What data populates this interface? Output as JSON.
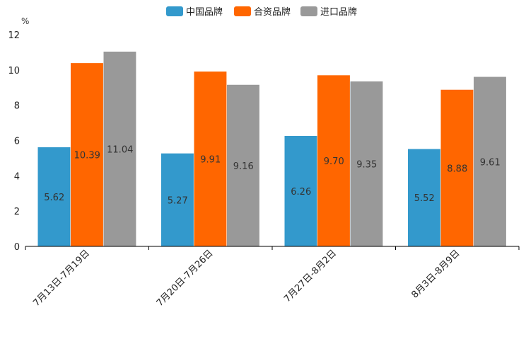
{
  "chart_data": {
    "type": "bar",
    "title": "",
    "xlabel": "",
    "ylabel": "%",
    "ylim": [
      0,
      12
    ],
    "yticks": [
      0,
      2,
      4,
      6,
      8,
      10,
      12
    ],
    "grid": false,
    "legend_position": "top-center",
    "categories": [
      "7月13日-7月19日",
      "7月20日-7月26日",
      "7月27日-8月2日",
      "8月3日-8月9日"
    ],
    "series": [
      {
        "name": "中国品牌",
        "color": "#3399cc",
        "values": [
          5.62,
          5.27,
          6.26,
          5.52
        ],
        "labels": [
          "5.62",
          "5.27",
          "6.26",
          "5.52"
        ]
      },
      {
        "name": "合资品牌",
        "color": "#ff6600",
        "values": [
          10.39,
          9.91,
          9.7,
          8.88
        ],
        "labels": [
          "10.39",
          "9.91",
          "9.70",
          "8.88"
        ]
      },
      {
        "name": "进口品牌",
        "color": "#999999",
        "values": [
          11.04,
          9.16,
          9.35,
          9.61
        ],
        "labels": [
          "11.04",
          "9.16",
          "9.35",
          "9.61"
        ]
      }
    ]
  }
}
